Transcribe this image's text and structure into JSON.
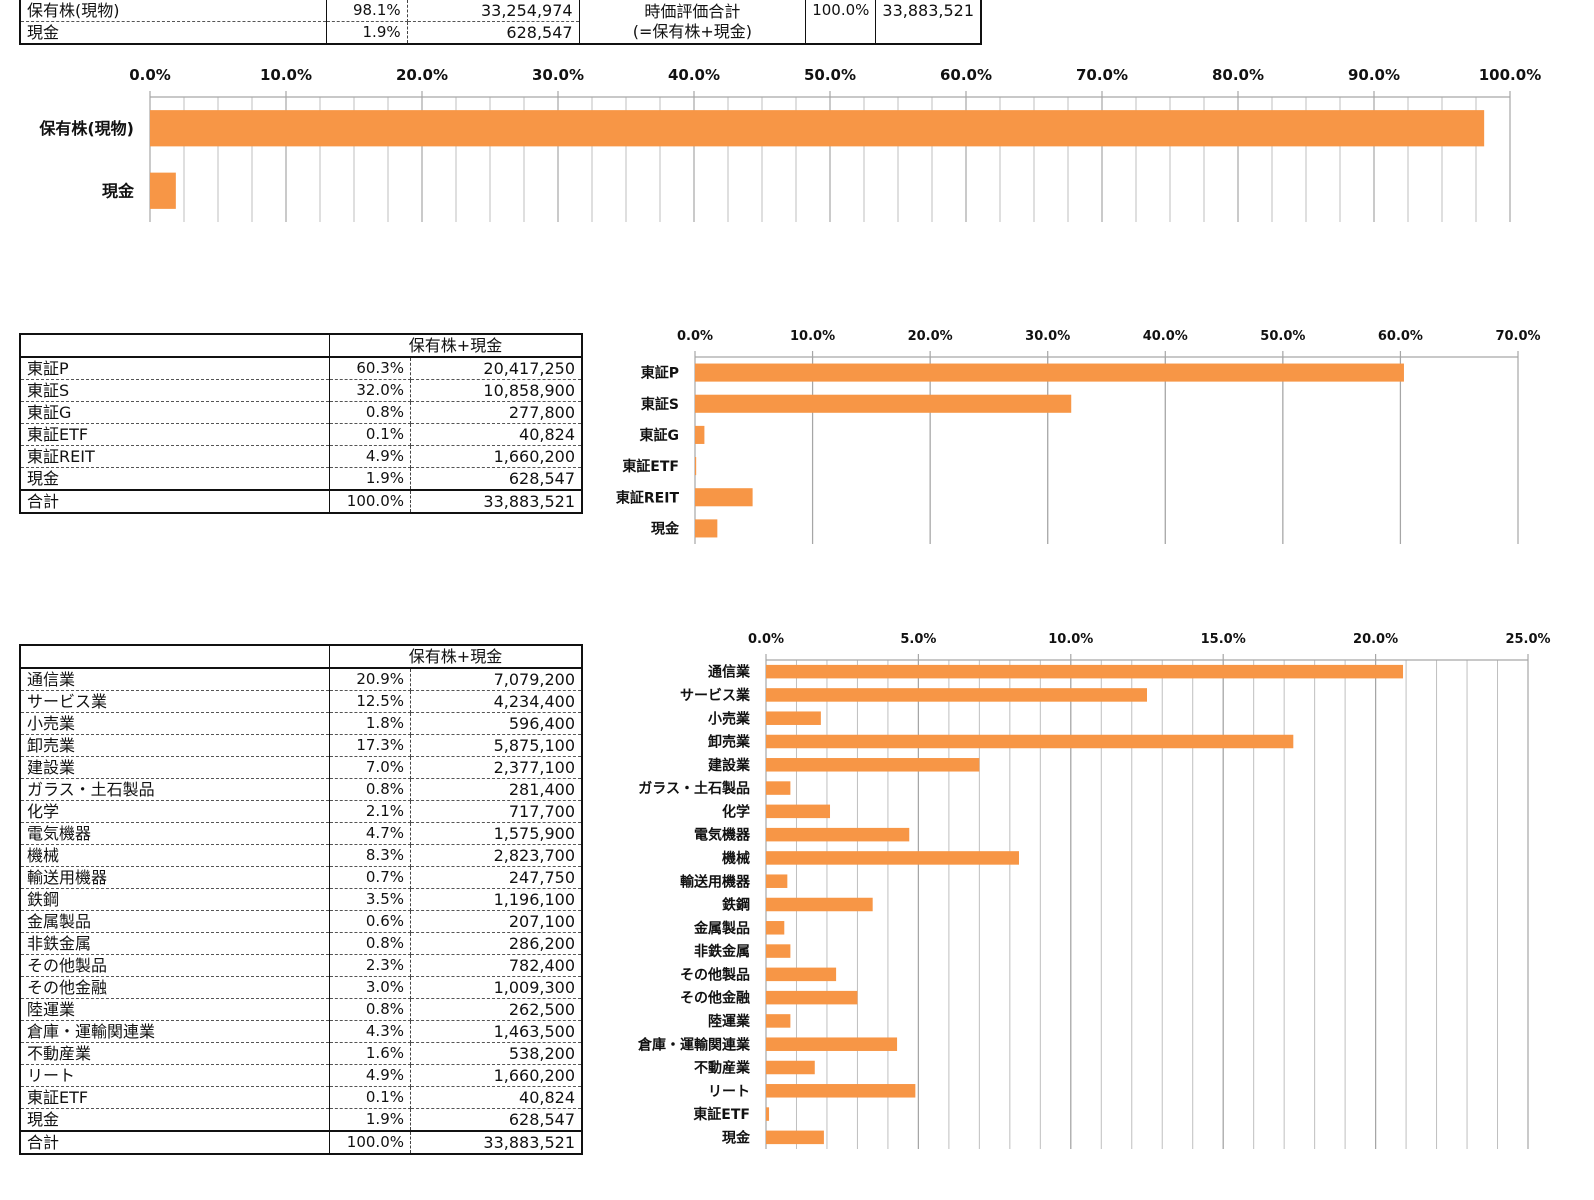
{
  "summary_table": {
    "rows": [
      {
        "label": "保有株(現物)",
        "pct": "98.1%",
        "value": "33,254,974"
      },
      {
        "label": "現金",
        "pct": "1.9%",
        "value": "628,547"
      }
    ],
    "total_label_line1": "時価評価合計",
    "total_label_line2": "(=保有株+現金)",
    "total_pct": "100.0%",
    "total_value": "33,883,521"
  },
  "market_table": {
    "header": "保有株+現金",
    "rows": [
      {
        "label": "東証P",
        "pct": "60.3%",
        "value": "20,417,250"
      },
      {
        "label": "東証S",
        "pct": "32.0%",
        "value": "10,858,900"
      },
      {
        "label": "東証G",
        "pct": "0.8%",
        "value": "277,800"
      },
      {
        "label": "東証ETF",
        "pct": "0.1%",
        "value": "40,824"
      },
      {
        "label": "東証REIT",
        "pct": "4.9%",
        "value": "1,660,200"
      },
      {
        "label": "現金",
        "pct": "1.9%",
        "value": "628,547"
      }
    ],
    "total": {
      "label": "合計",
      "pct": "100.0%",
      "value": "33,883,521"
    }
  },
  "sector_table": {
    "header": "保有株+現金",
    "rows": [
      {
        "label": "通信業",
        "pct": "20.9%",
        "value": "7,079,200"
      },
      {
        "label": "サービス業",
        "pct": "12.5%",
        "value": "4,234,400"
      },
      {
        "label": "小売業",
        "pct": "1.8%",
        "value": "596,400"
      },
      {
        "label": "卸売業",
        "pct": "17.3%",
        "value": "5,875,100"
      },
      {
        "label": "建設業",
        "pct": "7.0%",
        "value": "2,377,100"
      },
      {
        "label": "ガラス・土石製品",
        "pct": "0.8%",
        "value": "281,400"
      },
      {
        "label": "化学",
        "pct": "2.1%",
        "value": "717,700"
      },
      {
        "label": "電気機器",
        "pct": "4.7%",
        "value": "1,575,900"
      },
      {
        "label": "機械",
        "pct": "8.3%",
        "value": "2,823,700"
      },
      {
        "label": "輸送用機器",
        "pct": "0.7%",
        "value": "247,750"
      },
      {
        "label": "鉄鋼",
        "pct": "3.5%",
        "value": "1,196,100"
      },
      {
        "label": "金属製品",
        "pct": "0.6%",
        "value": "207,100"
      },
      {
        "label": "非鉄金属",
        "pct": "0.8%",
        "value": "286,200"
      },
      {
        "label": "その他製品",
        "pct": "2.3%",
        "value": "782,400"
      },
      {
        "label": "その他金融",
        "pct": "3.0%",
        "value": "1,009,300"
      },
      {
        "label": "陸運業",
        "pct": "0.8%",
        "value": "262,500"
      },
      {
        "label": "倉庫・運輸関連業",
        "pct": "4.3%",
        "value": "1,463,500"
      },
      {
        "label": "不動産業",
        "pct": "1.6%",
        "value": "538,200"
      },
      {
        "label": "リート",
        "pct": "4.9%",
        "value": "1,660,200"
      },
      {
        "label": "東証ETF",
        "pct": "0.1%",
        "value": "40,824"
      },
      {
        "label": "現金",
        "pct": "1.9%",
        "value": "628,547"
      }
    ],
    "total": {
      "label": "合計",
      "pct": "100.0%",
      "value": "33,883,521"
    }
  },
  "colors": {
    "bar": "#F79646",
    "grid": "#BFBFBF",
    "axis": "#A6A6A6"
  },
  "chart_data": [
    {
      "type": "bar",
      "orientation": "horizontal",
      "title": "",
      "categories": [
        "保有株(現物)",
        "現金"
      ],
      "values": [
        98.1,
        1.9
      ],
      "xlim": [
        0,
        100
      ],
      "tick_step": 10,
      "minor_step": 2.5,
      "tick_labels": [
        "0.0%",
        "10.0%",
        "20.0%",
        "30.0%",
        "40.0%",
        "50.0%",
        "60.0%",
        "70.0%",
        "80.0%",
        "90.0%",
        "100.0%"
      ],
      "grid": true
    },
    {
      "type": "bar",
      "orientation": "horizontal",
      "title": "",
      "categories": [
        "東証P",
        "東証S",
        "東証G",
        "東証ETF",
        "東証REIT",
        "現金"
      ],
      "values": [
        60.3,
        32.0,
        0.8,
        0.1,
        4.9,
        1.9
      ],
      "xlim": [
        0,
        70
      ],
      "tick_step": 10,
      "minor_step": 10,
      "tick_labels": [
        "0.0%",
        "10.0%",
        "20.0%",
        "30.0%",
        "40.0%",
        "50.0%",
        "60.0%",
        "70.0%"
      ],
      "grid": true
    },
    {
      "type": "bar",
      "orientation": "horizontal",
      "title": "",
      "categories": [
        "通信業",
        "サービス業",
        "小売業",
        "卸売業",
        "建設業",
        "ガラス・土石製品",
        "化学",
        "電気機器",
        "機械",
        "輸送用機器",
        "鉄鋼",
        "金属製品",
        "非鉄金属",
        "その他製品",
        "その他金融",
        "陸運業",
        "倉庫・運輸関連業",
        "不動産業",
        "リート",
        "東証ETF",
        "現金"
      ],
      "values": [
        20.9,
        12.5,
        1.8,
        17.3,
        7.0,
        0.8,
        2.1,
        4.7,
        8.3,
        0.7,
        3.5,
        0.6,
        0.8,
        2.3,
        3.0,
        0.8,
        4.3,
        1.6,
        4.9,
        0.1,
        1.9
      ],
      "xlim": [
        0,
        25
      ],
      "tick_step": 5,
      "minor_step": 1,
      "tick_labels": [
        "0.0%",
        "5.0%",
        "10.0%",
        "15.0%",
        "20.0%",
        "25.0%"
      ],
      "grid": true
    }
  ]
}
